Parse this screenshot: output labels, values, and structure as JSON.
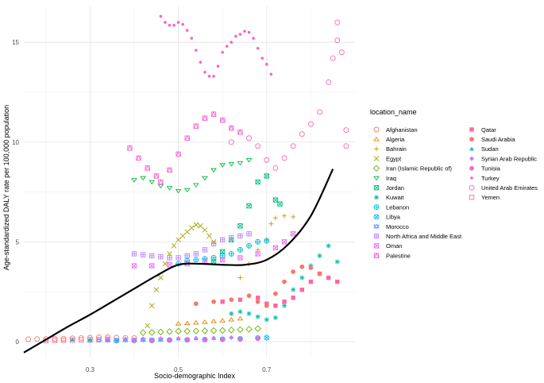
{
  "chart_data": {
    "type": "scatter",
    "xlabel": "Socio-demographic Index",
    "ylabel": "Age-standardized DALY rate per 100,000 population",
    "xlim": [
      0.15,
      0.9
    ],
    "ylim": [
      -0.8,
      16.8
    ],
    "x_ticks": [
      0.3,
      0.5,
      0.7
    ],
    "y_ticks": [
      0,
      5,
      10,
      15
    ],
    "grid": true,
    "legend_position": "right",
    "legend_title": "location_name",
    "trend_line": {
      "x": [
        0.15,
        0.2,
        0.25,
        0.3,
        0.35,
        0.4,
        0.45,
        0.5,
        0.55,
        0.6,
        0.65,
        0.7,
        0.75,
        0.8,
        0.85
      ],
      "y": [
        -0.55,
        0.1,
        0.75,
        1.35,
        2.0,
        2.65,
        3.3,
        3.85,
        3.9,
        3.85,
        3.85,
        4.1,
        4.9,
        6.3,
        8.65
      ]
    },
    "series": [
      {
        "name": "Afghanistan",
        "color": "#F8766D",
        "shape": "circle-open",
        "points": [
          [
            0.16,
            0.12
          ],
          [
            0.18,
            0.13
          ],
          [
            0.2,
            0.13
          ],
          [
            0.22,
            0.14
          ],
          [
            0.24,
            0.15
          ],
          [
            0.26,
            0.17
          ],
          [
            0.28,
            0.18
          ],
          [
            0.3,
            0.2
          ],
          [
            0.32,
            0.22
          ],
          [
            0.34,
            0.22
          ],
          [
            0.36,
            0.2
          ],
          [
            0.38,
            0.19
          ],
          [
            0.4,
            0.18
          ]
        ]
      },
      {
        "name": "Algeria",
        "color": "#E58700",
        "shape": "triangle-open",
        "points": [
          [
            0.5,
            0.9
          ],
          [
            0.52,
            0.92
          ],
          [
            0.54,
            0.95
          ],
          [
            0.56,
            0.98
          ],
          [
            0.58,
            1.02
          ],
          [
            0.6,
            1.05
          ],
          [
            0.62,
            1.1
          ],
          [
            0.64,
            1.15
          ]
        ]
      },
      {
        "name": "Bahrain",
        "color": "#C99800",
        "shape": "plus",
        "points": [
          [
            0.64,
            3.2
          ],
          [
            0.66,
            3.9
          ],
          [
            0.68,
            4.6
          ],
          [
            0.7,
            5.1
          ],
          [
            0.71,
            5.9
          ],
          [
            0.72,
            6.2
          ],
          [
            0.74,
            6.3
          ],
          [
            0.76,
            6.25
          ]
        ]
      },
      {
        "name": "Egypt",
        "color": "#A3A500",
        "shape": "cross",
        "points": [
          [
            0.43,
            0.8
          ],
          [
            0.44,
            1.8
          ],
          [
            0.45,
            2.6
          ],
          [
            0.46,
            3.2
          ],
          [
            0.47,
            3.9
          ],
          [
            0.48,
            4.4
          ],
          [
            0.49,
            4.8
          ],
          [
            0.5,
            5.1
          ],
          [
            0.51,
            5.3
          ],
          [
            0.52,
            5.5
          ],
          [
            0.53,
            5.7
          ],
          [
            0.54,
            5.85
          ],
          [
            0.55,
            5.8
          ],
          [
            0.56,
            5.6
          ],
          [
            0.57,
            5.3
          ],
          [
            0.58,
            5.0
          ]
        ]
      },
      {
        "name": "Iran (Islamic Republic of)",
        "color": "#6BB100",
        "shape": "diamond-open",
        "points": [
          [
            0.42,
            0.45
          ],
          [
            0.44,
            0.46
          ],
          [
            0.46,
            0.48
          ],
          [
            0.48,
            0.5
          ],
          [
            0.5,
            0.52
          ],
          [
            0.52,
            0.52
          ],
          [
            0.54,
            0.53
          ],
          [
            0.56,
            0.54
          ],
          [
            0.58,
            0.55
          ],
          [
            0.6,
            0.56
          ],
          [
            0.62,
            0.58
          ],
          [
            0.64,
            0.6
          ],
          [
            0.66,
            0.62
          ],
          [
            0.68,
            0.65
          ]
        ]
      },
      {
        "name": "Iraq",
        "color": "#00BA38",
        "shape": "triangle-down-open",
        "points": [
          [
            0.4,
            8.1
          ],
          [
            0.42,
            8.2
          ],
          [
            0.44,
            8.0
          ],
          [
            0.46,
            7.8
          ],
          [
            0.48,
            7.7
          ],
          [
            0.5,
            7.55
          ],
          [
            0.52,
            7.6
          ],
          [
            0.54,
            7.85
          ],
          [
            0.56,
            8.2
          ],
          [
            0.58,
            8.6
          ],
          [
            0.6,
            8.85
          ],
          [
            0.62,
            8.9
          ],
          [
            0.64,
            8.95
          ],
          [
            0.66,
            9.1
          ]
        ]
      },
      {
        "name": "Jordan",
        "color": "#00BF7D",
        "shape": "square-cross",
        "points": [
          [
            0.58,
            4.0
          ],
          [
            0.6,
            4.5
          ],
          [
            0.62,
            5.1
          ],
          [
            0.64,
            5.8
          ],
          [
            0.66,
            6.8
          ],
          [
            0.68,
            8.0
          ],
          [
            0.7,
            8.3
          ],
          [
            0.72,
            7.1
          ],
          [
            0.73,
            6.9
          ]
        ]
      },
      {
        "name": "Kuwait",
        "color": "#00C0AF",
        "shape": "star",
        "points": [
          [
            0.62,
            1.4
          ],
          [
            0.64,
            1.5
          ],
          [
            0.66,
            1.4
          ],
          [
            0.68,
            1.25
          ],
          [
            0.7,
            1.1
          ],
          [
            0.72,
            1.2
          ],
          [
            0.74,
            1.8
          ],
          [
            0.76,
            2.6
          ],
          [
            0.78,
            3.2
          ],
          [
            0.8,
            3.8
          ],
          [
            0.82,
            4.3
          ],
          [
            0.84,
            4.8
          ],
          [
            0.86,
            4.0
          ]
        ]
      },
      {
        "name": "Lebanon",
        "color": "#00BCD8",
        "shape": "circle-plus",
        "points": [
          [
            0.5,
            3.9
          ],
          [
            0.52,
            4.05
          ],
          [
            0.54,
            4.1
          ],
          [
            0.56,
            4.15
          ],
          [
            0.58,
            4.2
          ],
          [
            0.6,
            4.3
          ],
          [
            0.62,
            4.4
          ],
          [
            0.64,
            4.6
          ],
          [
            0.66,
            4.8
          ],
          [
            0.68,
            5.0
          ],
          [
            0.7,
            5.05
          ]
        ]
      },
      {
        "name": "Libya",
        "color": "#00B0F6",
        "shape": "circle-cross",
        "points": [
          [
            0.36,
            0.05
          ],
          [
            0.4,
            0.06
          ],
          [
            0.44,
            0.06
          ],
          [
            0.48,
            0.08
          ],
          [
            0.52,
            0.09
          ],
          [
            0.56,
            0.1
          ],
          [
            0.6,
            0.12
          ],
          [
            0.64,
            0.14
          ],
          [
            0.68,
            0.18
          ],
          [
            0.7,
            0.2
          ]
        ]
      },
      {
        "name": "Morocco",
        "color": "#619CFF",
        "shape": "star-of-david",
        "points": [
          [
            0.3,
            0.05
          ],
          [
            0.32,
            0.06
          ],
          [
            0.34,
            0.06
          ],
          [
            0.36,
            0.07
          ],
          [
            0.38,
            0.07
          ],
          [
            0.4,
            0.08
          ],
          [
            0.42,
            0.08
          ],
          [
            0.44,
            0.09
          ],
          [
            0.46,
            0.1
          ]
        ]
      },
      {
        "name": "North Africa and Middle East",
        "color": "#B983FF",
        "shape": "square-plus",
        "points": [
          [
            0.4,
            4.4
          ],
          [
            0.42,
            4.35
          ],
          [
            0.44,
            4.3
          ],
          [
            0.46,
            4.25
          ],
          [
            0.48,
            4.2
          ],
          [
            0.5,
            4.2
          ],
          [
            0.52,
            4.3
          ],
          [
            0.54,
            4.4
          ],
          [
            0.56,
            4.6
          ],
          [
            0.58,
            4.9
          ],
          [
            0.6,
            5.1
          ],
          [
            0.62,
            5.2
          ],
          [
            0.64,
            5.3
          ],
          [
            0.66,
            5.4
          ]
        ]
      },
      {
        "name": "Oman",
        "color": "#E76BF3",
        "shape": "square-x",
        "points": [
          [
            0.4,
            3.8
          ],
          [
            0.44,
            3.8
          ],
          [
            0.48,
            3.85
          ],
          [
            0.52,
            3.9
          ],
          [
            0.56,
            4.0
          ],
          [
            0.6,
            4.1
          ],
          [
            0.64,
            4.2
          ],
          [
            0.68,
            4.4
          ],
          [
            0.72,
            4.7
          ],
          [
            0.74,
            5.0
          ],
          [
            0.76,
            5.4
          ]
        ]
      },
      {
        "name": "Palestine",
        "color": "#FD61D1",
        "shape": "square-triangle",
        "points": [
          [
            0.39,
            9.7
          ],
          [
            0.41,
            9.2
          ],
          [
            0.43,
            8.7
          ],
          [
            0.45,
            8.3
          ],
          [
            0.46,
            8.0
          ],
          [
            0.48,
            8.6
          ],
          [
            0.5,
            9.4
          ],
          [
            0.52,
            10.2
          ],
          [
            0.54,
            10.8
          ],
          [
            0.56,
            11.2
          ],
          [
            0.58,
            11.4
          ],
          [
            0.6,
            11.1
          ],
          [
            0.62,
            10.7
          ],
          [
            0.64,
            10.5
          ]
        ]
      },
      {
        "name": "Qatar",
        "color": "#FF67A4",
        "shape": "square",
        "points": [
          [
            0.6,
            2.0
          ],
          [
            0.64,
            2.1
          ],
          [
            0.68,
            2.2
          ],
          [
            0.7,
            1.9
          ],
          [
            0.72,
            1.8
          ],
          [
            0.74,
            2.0
          ],
          [
            0.76,
            2.2
          ],
          [
            0.78,
            2.6
          ],
          [
            0.8,
            3.0
          ],
          [
            0.82,
            3.4
          ],
          [
            0.84,
            3.2
          ],
          [
            0.86,
            3.0
          ]
        ]
      },
      {
        "name": "Saudi Arabia",
        "color": "#F8766D",
        "shape": "circle",
        "points": [
          [
            0.54,
            1.9
          ],
          [
            0.58,
            2.0
          ],
          [
            0.62,
            2.1
          ],
          [
            0.66,
            2.3
          ],
          [
            0.68,
            2.0
          ],
          [
            0.7,
            1.8
          ],
          [
            0.72,
            2.4
          ],
          [
            0.74,
            3.0
          ],
          [
            0.76,
            3.5
          ],
          [
            0.78,
            3.75
          ],
          [
            0.8,
            3.7
          ],
          [
            0.82,
            3.4
          ]
        ]
      },
      {
        "name": "Sudan",
        "color": "#00BFC4",
        "shape": "triangle",
        "points": [
          [
            0.26,
            0.1
          ],
          [
            0.3,
            0.1
          ],
          [
            0.34,
            0.11
          ],
          [
            0.38,
            0.11
          ],
          [
            0.42,
            0.12
          ],
          [
            0.46,
            0.13
          ],
          [
            0.5,
            0.14
          ],
          [
            0.54,
            0.15
          ],
          [
            0.58,
            0.16
          ]
        ]
      },
      {
        "name": "Syrian Arab Republic",
        "color": "#C77CFF",
        "shape": "diamond",
        "points": [
          [
            0.34,
            0.12
          ],
          [
            0.38,
            0.13
          ],
          [
            0.42,
            0.14
          ],
          [
            0.46,
            0.15
          ],
          [
            0.5,
            0.16
          ],
          [
            0.54,
            0.17
          ],
          [
            0.58,
            0.18
          ],
          [
            0.62,
            0.2
          ]
        ]
      },
      {
        "name": "Tunisia",
        "color": "#F564E3",
        "shape": "circle",
        "points": [
          [
            0.4,
            0.05
          ],
          [
            0.44,
            0.06
          ],
          [
            0.48,
            0.07
          ],
          [
            0.52,
            0.08
          ],
          [
            0.56,
            0.09
          ],
          [
            0.6,
            0.1
          ],
          [
            0.64,
            0.12
          ],
          [
            0.68,
            0.15
          ]
        ]
      },
      {
        "name": "Turkey",
        "color": "#FF61C3",
        "shape": "circle-small",
        "points": [
          [
            0.46,
            16.3
          ],
          [
            0.47,
            16.0
          ],
          [
            0.48,
            15.85
          ],
          [
            0.49,
            15.85
          ],
          [
            0.5,
            16.0
          ],
          [
            0.51,
            15.9
          ],
          [
            0.52,
            15.6
          ],
          [
            0.53,
            15.2
          ],
          [
            0.54,
            14.6
          ],
          [
            0.55,
            14.0
          ],
          [
            0.56,
            13.5
          ],
          [
            0.57,
            13.3
          ],
          [
            0.58,
            13.3
          ],
          [
            0.59,
            13.8
          ],
          [
            0.6,
            14.5
          ],
          [
            0.61,
            14.8
          ],
          [
            0.62,
            15.0
          ],
          [
            0.63,
            15.3
          ],
          [
            0.64,
            15.4
          ],
          [
            0.65,
            15.55
          ],
          [
            0.66,
            15.5
          ],
          [
            0.67,
            15.2
          ],
          [
            0.68,
            14.7
          ],
          [
            0.69,
            14.2
          ],
          [
            0.7,
            13.9
          ],
          [
            0.71,
            13.4
          ]
        ]
      },
      {
        "name": "United Arab Emirates",
        "color": "#FF66B2",
        "shape": "circle-open",
        "points": [
          [
            0.62,
            10.0
          ],
          [
            0.66,
            10.2
          ],
          [
            0.68,
            9.8
          ],
          [
            0.7,
            9.1
          ],
          [
            0.72,
            8.7
          ],
          [
            0.74,
            9.2
          ],
          [
            0.76,
            9.8
          ],
          [
            0.78,
            10.4
          ],
          [
            0.8,
            10.9
          ],
          [
            0.82,
            11.5
          ],
          [
            0.84,
            13.0
          ],
          [
            0.85,
            14.2
          ],
          [
            0.86,
            15.1
          ],
          [
            0.86,
            16.0
          ],
          [
            0.87,
            14.5
          ],
          [
            0.88,
            10.6
          ],
          [
            0.88,
            9.8
          ]
        ]
      },
      {
        "name": "Yemen",
        "color": "#FF6C91",
        "shape": "square-open",
        "points": [
          [
            0.2,
            0.05
          ],
          [
            0.22,
            0.06
          ],
          [
            0.24,
            0.07
          ],
          [
            0.26,
            0.08
          ],
          [
            0.28,
            0.09
          ],
          [
            0.3,
            0.1
          ],
          [
            0.32,
            0.11
          ],
          [
            0.34,
            0.12
          ]
        ]
      }
    ]
  }
}
